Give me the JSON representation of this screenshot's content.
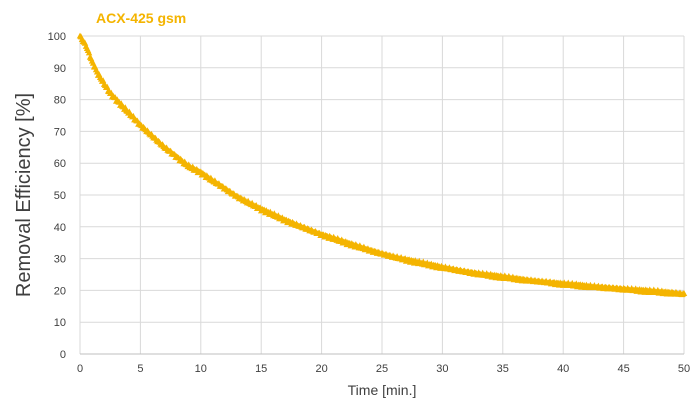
{
  "chart_data": {
    "type": "scatter",
    "title": "",
    "series": [
      {
        "name": "ACX-425 gsm",
        "color": "#F4B400",
        "marker": "triangle",
        "x": [
          0,
          0.5,
          1,
          1.5,
          2,
          2.5,
          3,
          4,
          5,
          6,
          7,
          8,
          9,
          10,
          11,
          12,
          13,
          14,
          15,
          16,
          17,
          18,
          19,
          20,
          21,
          22,
          23,
          24,
          25,
          26,
          27,
          28,
          29,
          30,
          31,
          32,
          33,
          34,
          35,
          36,
          37,
          38,
          39,
          40,
          41,
          42,
          43,
          44,
          45,
          46,
          47,
          48,
          49,
          50
        ],
        "y": [
          100,
          97,
          92,
          88,
          85,
          82,
          80,
          76,
          72,
          68.5,
          65,
          62,
          59,
          57,
          54.5,
          52,
          49.5,
          47.5,
          45.5,
          43.8,
          42,
          40.5,
          39,
          37.5,
          36.3,
          35,
          33.8,
          32.6,
          31.5,
          30.5,
          29.6,
          28.8,
          28,
          27.2,
          26.5,
          25.8,
          25.2,
          24.7,
          24.2,
          23.7,
          23.2,
          22.8,
          22.4,
          22,
          21.7,
          21.3,
          21,
          20.7,
          20.4,
          20.1,
          19.8,
          19.5,
          19.2,
          18.8
        ]
      }
    ],
    "xlabel": "Time [min.]",
    "ylabel": "Removal Efficiency [%]",
    "xlim": [
      0,
      50
    ],
    "ylim": [
      0,
      100
    ],
    "xticks": [
      0,
      5,
      10,
      15,
      20,
      25,
      30,
      35,
      40,
      45,
      50
    ],
    "yticks": [
      0,
      10,
      20,
      30,
      40,
      50,
      60,
      70,
      80,
      90,
      100
    ],
    "grid": true,
    "legend": "top-left"
  }
}
